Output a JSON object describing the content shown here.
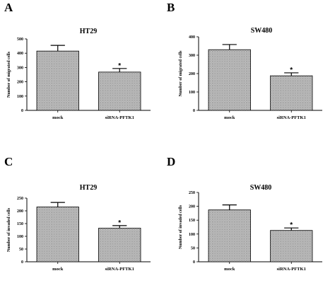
{
  "figure": {
    "panels": [
      {
        "letter": "A",
        "chart_data": {
          "type": "bar",
          "title": "HT29",
          "ylabel": "Number of migrated cells",
          "xlabel": "",
          "categories": [
            "mock",
            "siRNA-PFTK1"
          ],
          "values": [
            415,
            268
          ],
          "errors": [
            40,
            25
          ],
          "ylim": [
            0,
            500
          ],
          "yticks": [
            0,
            100,
            200,
            300,
            400,
            500
          ],
          "significance": [
            "",
            "*"
          ],
          "grid": false,
          "bar_fill": "hatched-gray"
        }
      },
      {
        "letter": "B",
        "chart_data": {
          "type": "bar",
          "title": "SW480",
          "ylabel": "Number of migrated cells",
          "xlabel": "",
          "categories": [
            "mock",
            "siRNA-PFTK1"
          ],
          "values": [
            330,
            188
          ],
          "errors": [
            28,
            16
          ],
          "ylim": [
            0,
            400
          ],
          "yticks": [
            0,
            100,
            200,
            300,
            400
          ],
          "significance": [
            "",
            "*"
          ],
          "grid": false,
          "bar_fill": "hatched-gray"
        }
      },
      {
        "letter": "C",
        "chart_data": {
          "type": "bar",
          "title": "HT29",
          "ylabel": "Number of invaded cells",
          "xlabel": "",
          "categories": [
            "mock",
            "siRNA-PFTK1"
          ],
          "values": [
            215,
            132
          ],
          "errors": [
            18,
            10
          ],
          "ylim": [
            0,
            250
          ],
          "yticks": [
            0,
            50,
            100,
            150,
            200,
            250
          ],
          "significance": [
            "",
            "*"
          ],
          "grid": false,
          "bar_fill": "hatched-gray"
        }
      },
      {
        "letter": "D",
        "chart_data": {
          "type": "bar",
          "title": "SW480",
          "ylabel": "Number of invaded cells",
          "xlabel": "",
          "categories": [
            "mock",
            "siRNA-PFTK1"
          ],
          "values": [
            187,
            113
          ],
          "errors": [
            18,
            9
          ],
          "ylim": [
            0,
            250
          ],
          "yticks": [
            0,
            50,
            100,
            150,
            200,
            250
          ],
          "significance": [
            "",
            "*"
          ],
          "grid": false,
          "bar_fill": "hatched-gray"
        }
      }
    ]
  },
  "colors": {
    "axis": "#000000",
    "bar_edge": "#000000",
    "hatch_light": "#ffffff",
    "hatch_dark": "#6a6a6a"
  }
}
